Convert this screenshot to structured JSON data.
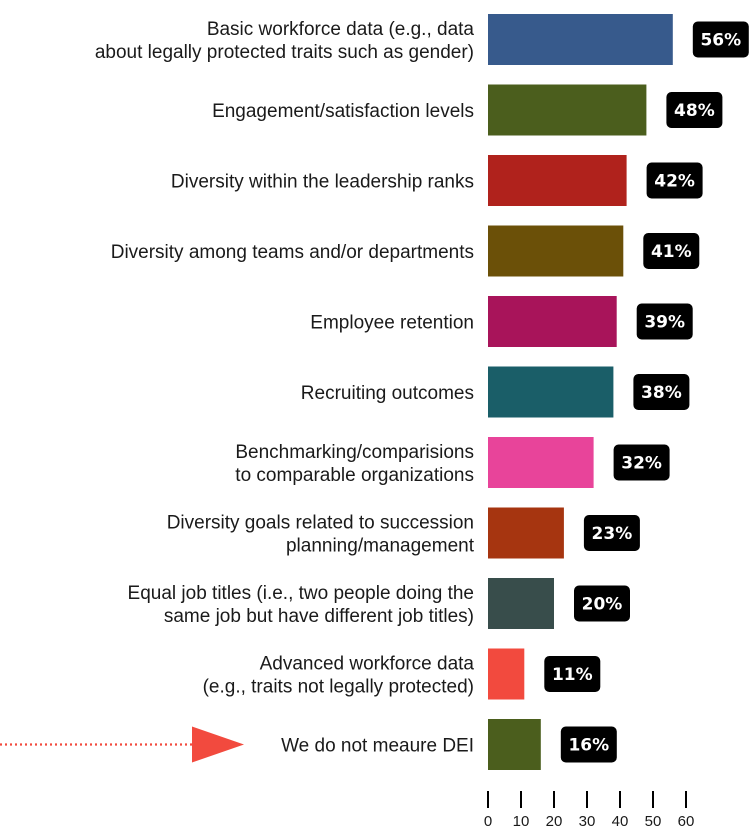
{
  "chart_data": {
    "type": "bar",
    "orientation": "horizontal",
    "categories": [
      "Basic workforce data (e.g., data about legally protected traits such as gender)",
      "Engagement/satisfaction levels",
      "Diversity within the leadership ranks",
      "Diversity among teams and/or departments",
      "Employee retention",
      "Recruiting outcomes",
      "Benchmarking/comparisions to comparable organizations",
      "Diversity goals related to succession planning/management",
      "Equal job titles (i.e., two people doing the same job but have different job titles)",
      "Advanced workforce data (e.g., traits not legally protected)",
      "We do not meaure DEI"
    ],
    "category_lines": [
      [
        "Basic workforce data (e.g., data",
        "about legally protected traits such as gender)"
      ],
      [
        "Engagement/satisfaction levels"
      ],
      [
        "Diversity within the leadership ranks"
      ],
      [
        "Diversity among teams and/or departments"
      ],
      [
        "Employee retention"
      ],
      [
        "Recruiting outcomes"
      ],
      [
        "Benchmarking/comparisions",
        "to comparable organizations"
      ],
      [
        "Diversity goals related to succession",
        "planning/management"
      ],
      [
        "Equal job titles (i.e., two people doing the",
        "same job but have different job titles)"
      ],
      [
        "Advanced workforce data",
        "(e.g., traits not legally protected)"
      ],
      [
        "We do not meaure DEI"
      ]
    ],
    "values": [
      56,
      48,
      42,
      41,
      39,
      38,
      32,
      23,
      20,
      11,
      16
    ],
    "data_labels": [
      "56%",
      "48%",
      "42%",
      "41%",
      "39%",
      "38%",
      "32%",
      "23%",
      "20%",
      "11%",
      "16%"
    ],
    "colors": [
      "#375a8c",
      "#4b5e1d",
      "#b0221c",
      "#6b5008",
      "#a8145a",
      "#1a5e68",
      "#e8449a",
      "#a63510",
      "#384d4b",
      "#f24a3e",
      "#4b5e1d"
    ],
    "xticks": [
      0,
      10,
      20,
      30,
      40,
      50,
      60
    ],
    "xlim": [
      0,
      60
    ],
    "title": "",
    "xlabel": "",
    "ylabel": "",
    "grid": false,
    "legend": "none",
    "label_box_color": "#000000",
    "highlight": {
      "category_index": 10,
      "arrow_color": "#f24a3e",
      "arrow_style": "dotted line with triangle head"
    }
  }
}
